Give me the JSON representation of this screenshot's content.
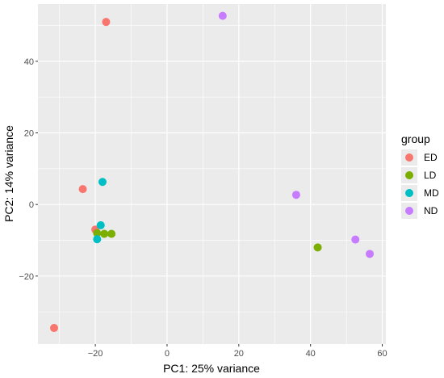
{
  "chart_data": {
    "type": "scatter",
    "xlabel": "PC1: 25% variance",
    "ylabel": "PC2: 14% variance",
    "xlim": [
      -36,
      61
    ],
    "ylim": [
      -39,
      56
    ],
    "xticks": [
      -20,
      0,
      20,
      40,
      60
    ],
    "yticks": [
      -20,
      0,
      20,
      40
    ],
    "grid": true,
    "background": "#ebebeb",
    "legend": {
      "title": "group",
      "position": "right"
    },
    "series": [
      {
        "name": "ED",
        "color": "#f8766d",
        "points": [
          {
            "x": -17,
            "y": 51
          },
          {
            "x": -23.5,
            "y": 4.3
          },
          {
            "x": -20,
            "y": -7
          },
          {
            "x": -31.5,
            "y": -34.5
          }
        ]
      },
      {
        "name": "LD",
        "color": "#7cae00",
        "points": [
          {
            "x": -19.5,
            "y": -8
          },
          {
            "x": -17.5,
            "y": -8.2
          },
          {
            "x": -15.5,
            "y": -8.2
          },
          {
            "x": 42,
            "y": -12
          }
        ]
      },
      {
        "name": "MD",
        "color": "#00bfc4",
        "points": [
          {
            "x": -18,
            "y": 6.3
          },
          {
            "x": -18.5,
            "y": -5.8
          },
          {
            "x": -19.5,
            "y": -9.7
          }
        ]
      },
      {
        "name": "ND",
        "color": "#c77cff",
        "points": [
          {
            "x": 15.5,
            "y": 52.7
          },
          {
            "x": 36,
            "y": 2.7
          },
          {
            "x": 52.5,
            "y": -9.8
          },
          {
            "x": 56.5,
            "y": -13.8
          }
        ]
      }
    ]
  }
}
